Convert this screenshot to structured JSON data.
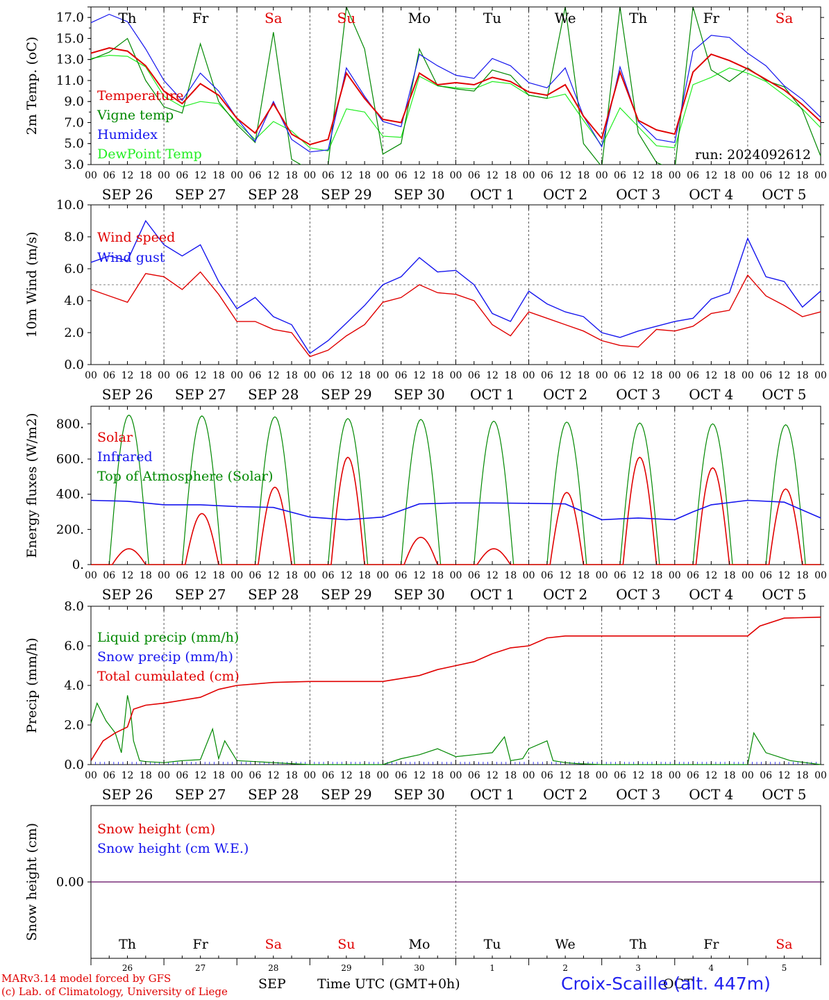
{
  "days": [
    "Th",
    "Fr",
    "Sa",
    "Su",
    "Mo",
    "Tu",
    "We",
    "Th",
    "Fr",
    "Sa"
  ],
  "day_colors": [
    "#000",
    "#000",
    "#e00000",
    "#e00000",
    "#000",
    "#000",
    "#000",
    "#000",
    "#000",
    "#e00000"
  ],
  "date_labels": [
    "SEP 26",
    "SEP 27",
    "SEP 28",
    "SEP 29",
    "SEP 30",
    "OCT  1",
    "OCT  2",
    "OCT  3",
    "OCT  4",
    "OCT  5"
  ],
  "hour_ticks": [
    "00",
    "06",
    "12",
    "18"
  ],
  "bottom_days": [
    "26",
    "27",
    "28",
    "29",
    "30",
    "1",
    "2",
    "3",
    "4",
    "5"
  ],
  "bottom_month_left": "SEP",
  "bottom_month_right": "OCT",
  "xlabel": "Time UTC (GMT+0h)",
  "run_label": "run: 2024092612",
  "footer": {
    "model": "MARv3.14 model forced by GFS",
    "credit": "(c) Lab. of Climatology, University of Liege",
    "station": "Croix-Scaille (alt. 447m)"
  },
  "colors": {
    "red": "#e00000",
    "green": "#008800",
    "blue": "#1515ee",
    "lightgreen": "#22ee22",
    "purple": "#7a2e7a"
  },
  "chart_data": [
    {
      "type": "line",
      "id": "temp",
      "ylabel": "2m Temp. (oC)",
      "ylim": [
        3,
        18
      ],
      "yticks": [
        3.0,
        5.0,
        7.0,
        9.0,
        11.0,
        13.0,
        15.0,
        17.0
      ],
      "ytick_labels": [
        "3.0",
        "5.0",
        "7.0",
        "9.0",
        "11.0",
        "13.0",
        "15.0",
        "17.0"
      ],
      "x_unit": "hours since SEP 26 00 UTC",
      "xlim": [
        0,
        240
      ],
      "series": [
        {
          "name": "Temperature",
          "color": "red",
          "x": [
            0,
            6,
            12,
            18,
            24,
            30,
            36,
            42,
            48,
            54,
            60,
            66,
            72,
            78,
            84,
            90,
            96,
            102,
            108,
            114,
            120,
            126,
            132,
            138,
            144,
            150,
            156,
            162,
            168,
            174,
            180,
            186,
            192,
            198,
            204,
            210,
            216,
            222,
            228,
            234,
            240
          ],
          "y": [
            13.6,
            14.1,
            13.8,
            12.4,
            10,
            8.8,
            10.7,
            9.6,
            7.4,
            6,
            8.8,
            5.9,
            4.9,
            5.4,
            11.7,
            9.3,
            7.3,
            7,
            11.7,
            10.6,
            10.8,
            10.6,
            11.3,
            10.9,
            9.9,
            9.6,
            10.6,
            7.6,
            5.5,
            11.8,
            7.2,
            6.3,
            5.9,
            11.8,
            13.5,
            12.9,
            12.1,
            11.1,
            10.1,
            8.7,
            7.1
          ]
        },
        {
          "name": "Vigne temp",
          "color": "green",
          "x": [
            0,
            6,
            12,
            18,
            24,
            30,
            36,
            42,
            48,
            54,
            60,
            66,
            72,
            78,
            84,
            90,
            96,
            102,
            108,
            114,
            120,
            126,
            132,
            138,
            144,
            150,
            156,
            162,
            168,
            174,
            180,
            186,
            192,
            198,
            204,
            210,
            216,
            222,
            228,
            234,
            240
          ],
          "y": [
            13,
            13.7,
            15,
            11,
            8.5,
            7.9,
            14.5,
            9,
            6.8,
            5.1,
            15.6,
            3.5,
            2.5,
            3,
            18,
            14,
            4,
            5,
            14,
            10.5,
            10.2,
            10,
            12,
            11.5,
            9.6,
            9.3,
            18,
            5,
            2.8,
            18,
            6,
            3.2,
            2.5,
            18,
            12,
            10.9,
            12.2,
            11,
            10.4,
            8.2,
            3.8
          ]
        },
        {
          "name": "Humidex",
          "color": "blue",
          "x": [
            0,
            6,
            12,
            18,
            24,
            30,
            36,
            42,
            48,
            54,
            60,
            66,
            72,
            78,
            84,
            90,
            96,
            102,
            108,
            114,
            120,
            126,
            132,
            138,
            144,
            150,
            156,
            162,
            168,
            174,
            180,
            186,
            192,
            198,
            204,
            210,
            216,
            222,
            228,
            234,
            240
          ],
          "y": [
            16.5,
            17.3,
            16.6,
            14,
            11,
            9.1,
            11.7,
            10,
            7.4,
            5.2,
            9,
            5.4,
            4.2,
            4.4,
            12.2,
            9.5,
            7.1,
            6.6,
            13.5,
            12.4,
            11.5,
            11.2,
            13.1,
            12.4,
            10.8,
            10.3,
            12.2,
            7.6,
            4.7,
            12.3,
            7.1,
            5.4,
            5.1,
            13.8,
            15.3,
            15.1,
            13.6,
            12.4,
            10.5,
            9.2,
            7.5
          ]
        },
        {
          "name": "DewPoint Temp",
          "color": "lightgreen",
          "x": [
            0,
            6,
            12,
            18,
            24,
            30,
            36,
            42,
            48,
            54,
            60,
            66,
            72,
            78,
            84,
            90,
            96,
            102,
            108,
            114,
            120,
            126,
            132,
            138,
            144,
            150,
            156,
            162,
            168,
            174,
            180,
            186,
            192,
            198,
            204,
            210,
            216,
            222,
            228,
            234,
            240
          ],
          "y": [
            13.1,
            13.4,
            13.3,
            12.3,
            9.5,
            8.5,
            9,
            8.8,
            7,
            5.4,
            7.1,
            6.2,
            4.6,
            4.3,
            8.3,
            8,
            5.7,
            5.6,
            11.4,
            10.5,
            10.3,
            10.2,
            10.9,
            10.7,
            9.6,
            9.3,
            9.7,
            7.2,
            4.8,
            8.4,
            6.6,
            4.8,
            4.6,
            10.6,
            11.3,
            12.2,
            11.7,
            10.9,
            9.6,
            8.3,
            6.5
          ]
        }
      ],
      "legend": [
        "Temperature",
        "Vigne temp",
        "Humidex",
        "DewPoint Temp"
      ]
    },
    {
      "type": "line",
      "id": "wind",
      "ylabel": "10m Wind (m/s)",
      "ylim": [
        0,
        10
      ],
      "yticks": [
        0,
        2,
        4,
        6,
        8,
        10
      ],
      "ytick_labels": [
        "0.0",
        "2.0",
        "4.0",
        "6.0",
        "8.0",
        "10.0"
      ],
      "reference_line": 5,
      "x_unit": "hours since SEP 26 00 UTC",
      "xlim": [
        0,
        240
      ],
      "series": [
        {
          "name": "Wind speed",
          "color": "red",
          "x": [
            0,
            6,
            12,
            18,
            24,
            30,
            36,
            42,
            48,
            54,
            60,
            66,
            72,
            78,
            84,
            90,
            96,
            102,
            108,
            114,
            120,
            126,
            132,
            138,
            144,
            150,
            156,
            162,
            168,
            174,
            180,
            186,
            192,
            198,
            204,
            210,
            216,
            222,
            228,
            234,
            240
          ],
          "y": [
            4.7,
            4.3,
            3.9,
            5.7,
            5.5,
            4.7,
            5.8,
            4.4,
            2.7,
            2.7,
            2.2,
            2,
            0.5,
            0.9,
            1.8,
            2.5,
            3.9,
            4.2,
            5,
            4.5,
            4.4,
            4,
            2.5,
            1.8,
            3.3,
            2.9,
            2.5,
            2.1,
            1.5,
            1.2,
            1.1,
            2.2,
            2.1,
            2.4,
            3.2,
            3.4,
            5.6,
            4.3,
            3.7,
            3,
            3.3
          ]
        },
        {
          "name": "Wind gust",
          "color": "blue",
          "x": [
            0,
            6,
            12,
            18,
            24,
            30,
            36,
            42,
            48,
            54,
            60,
            66,
            72,
            78,
            84,
            90,
            96,
            102,
            108,
            114,
            120,
            126,
            132,
            138,
            144,
            150,
            156,
            162,
            168,
            174,
            180,
            186,
            192,
            198,
            204,
            210,
            216,
            222,
            228,
            234,
            240
          ],
          "y": [
            6.4,
            6.8,
            6.5,
            9,
            7.5,
            6.8,
            7.5,
            5.2,
            3.5,
            4.2,
            3,
            2.5,
            0.7,
            1.5,
            2.6,
            3.7,
            5,
            5.5,
            6.7,
            5.8,
            5.9,
            5,
            3.2,
            2.7,
            4.6,
            3.8,
            3.3,
            3,
            2,
            1.7,
            2.1,
            2.4,
            2.7,
            2.9,
            4.1,
            4.5,
            7.9,
            5.5,
            5.2,
            3.6,
            4.6
          ]
        }
      ],
      "legend": [
        "Wind speed",
        "Wind gust"
      ]
    },
    {
      "type": "line",
      "id": "energy",
      "ylabel": "Energy fluxes (W/m2)",
      "ylim": [
        0,
        900
      ],
      "yticks": [
        0,
        200,
        400,
        600,
        800
      ],
      "ytick_labels": [
        "0.",
        "200.",
        "400.",
        "600.",
        "800."
      ],
      "x_unit": "hours since SEP 26 00 UTC",
      "xlim": [
        0,
        240
      ],
      "peaks_note": "diurnal",
      "series": [
        {
          "name": "Solar",
          "color": "red",
          "daily_peak": [
            90,
            290,
            440,
            610,
            155,
            90,
            410,
            610,
            550,
            430
          ]
        },
        {
          "name": "Infrared",
          "color": "blue",
          "x": [
            0,
            12,
            24,
            36,
            48,
            60,
            72,
            84,
            96,
            108,
            120,
            132,
            144,
            156,
            168,
            180,
            192,
            198,
            204,
            216,
            228,
            240
          ],
          "y": [
            365,
            360,
            340,
            340,
            330,
            325,
            270,
            255,
            270,
            345,
            350,
            350,
            348,
            345,
            255,
            265,
            255,
            300,
            340,
            365,
            355,
            265
          ]
        },
        {
          "name": "Top of Atmosphere (Solar)",
          "color": "green",
          "daily_peak": [
            850,
            845,
            840,
            830,
            825,
            815,
            810,
            805,
            800,
            795
          ]
        }
      ],
      "legend": [
        "Solar",
        "Infrared",
        "Top of Atmosphere (Solar)"
      ]
    },
    {
      "type": "line",
      "id": "precip",
      "ylabel": "Precip (mm/h)",
      "ylim": [
        0,
        8
      ],
      "yticks": [
        0,
        2,
        4,
        6,
        8
      ],
      "ytick_labels": [
        "0.0",
        "2.0",
        "4.0",
        "6.0",
        "8.0"
      ],
      "x_unit": "hours since SEP 26 00 UTC",
      "xlim": [
        0,
        240
      ],
      "series": [
        {
          "name": "Liquid precip (mm/h)",
          "color": "green",
          "x": [
            0,
            2,
            5,
            8,
            10,
            12,
            13,
            14,
            16,
            18,
            24,
            30,
            36,
            40,
            42,
            44,
            48,
            54,
            60,
            66,
            72,
            96,
            102,
            108,
            114,
            120,
            126,
            132,
            136,
            138,
            142,
            144,
            150,
            152,
            156,
            160,
            168,
            216,
            218,
            222,
            226,
            230,
            240
          ],
          "y": [
            2.1,
            3.1,
            2.2,
            1.6,
            0.6,
            3.5,
            2.8,
            1.2,
            0.2,
            0.15,
            0.1,
            0.2,
            0.25,
            1.8,
            0.3,
            1.2,
            0.2,
            0.15,
            0.1,
            0.05,
            0,
            0,
            0.3,
            0.5,
            0.8,
            0.4,
            0.5,
            0.6,
            1.4,
            0.2,
            0.3,
            0.8,
            1.2,
            0.2,
            0.1,
            0.05,
            0,
            0,
            1.6,
            0.6,
            0.4,
            0.2,
            0
          ]
        },
        {
          "name": "Snow precip (mm/h)",
          "color": "blue",
          "x": [
            0,
            240
          ],
          "y": [
            0,
            0
          ]
        },
        {
          "name": "Total cumulated (cm)",
          "color": "red",
          "x": [
            0,
            4,
            8,
            12,
            14,
            18,
            24,
            36,
            42,
            48,
            60,
            72,
            96,
            108,
            114,
            120,
            126,
            132,
            138,
            144,
            150,
            156,
            168,
            216,
            220,
            228,
            240
          ],
          "y": [
            0.2,
            1.2,
            1.6,
            1.9,
            2.8,
            3,
            3.1,
            3.4,
            3.8,
            4.0,
            4.15,
            4.2,
            4.2,
            4.5,
            4.8,
            5.0,
            5.2,
            5.6,
            5.9,
            6.0,
            6.4,
            6.5,
            6.5,
            6.5,
            7.0,
            7.4,
            7.45
          ]
        }
      ],
      "legend": [
        "Liquid precip (mm/h)",
        "Snow precip (mm/h)",
        "Total cumulated (cm)"
      ]
    },
    {
      "type": "line",
      "id": "snow",
      "ylabel": "Snow height (cm)",
      "yticks": [
        0
      ],
      "ytick_labels": [
        "0.00"
      ],
      "ylim": [
        -1,
        1
      ],
      "x_unit": "hours since SEP 26 00 UTC",
      "xlim": [
        0,
        240
      ],
      "series": [
        {
          "name": "Snow height (cm)",
          "color": "red",
          "x": [
            0,
            240
          ],
          "y": [
            0,
            0
          ]
        },
        {
          "name": "Snow height (cm W.E.)",
          "color": "blue",
          "x": [
            0,
            240
          ],
          "y": [
            0,
            0
          ]
        }
      ],
      "legend": [
        "Snow height (cm)",
        "Snow height (cm W.E.)"
      ]
    }
  ]
}
